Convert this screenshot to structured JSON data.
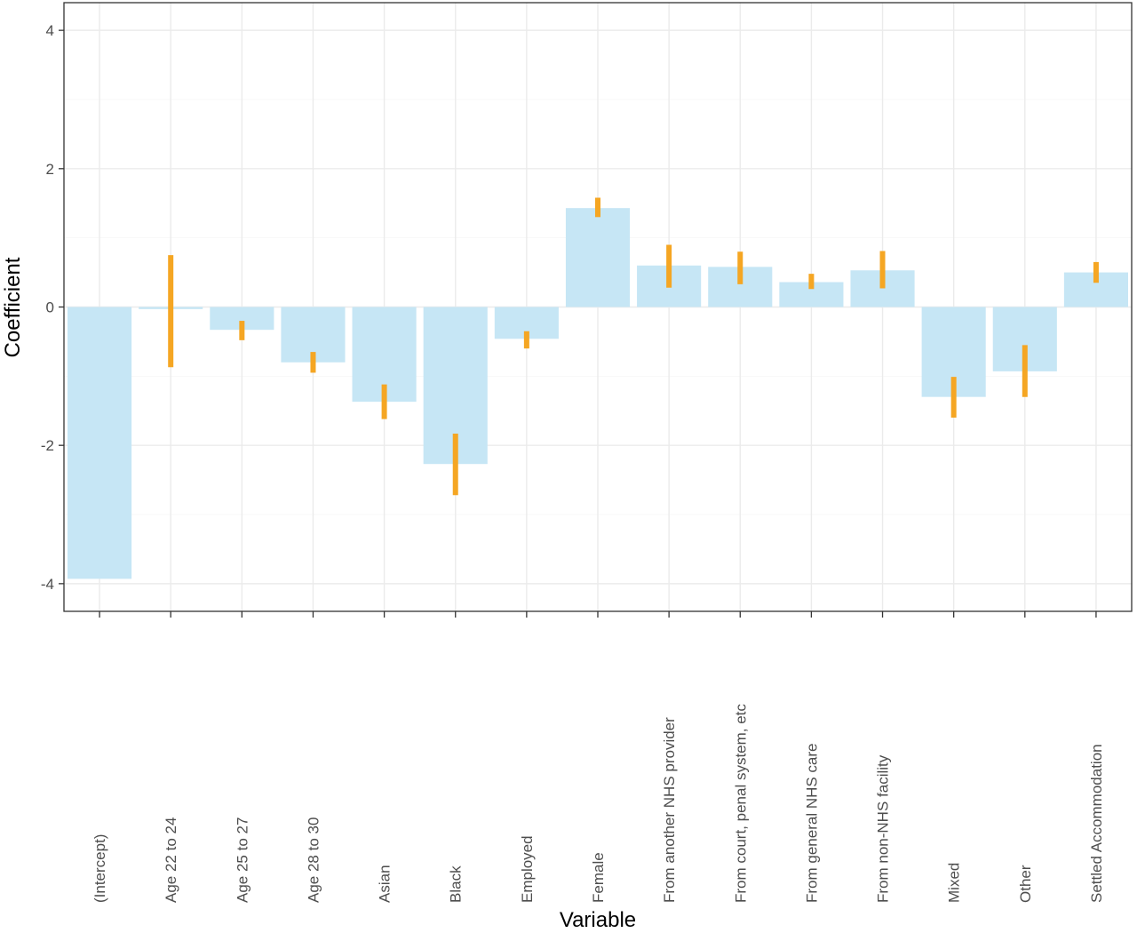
{
  "chart_data": {
    "type": "bar",
    "xlabel": "Variable",
    "ylabel": "Coefficient",
    "ylim": [
      -4.4,
      4.4
    ],
    "yticks": [
      -4,
      -2,
      0,
      2,
      4
    ],
    "ytick_labels": [
      "-4",
      "-2",
      "0",
      "2",
      "4"
    ],
    "grid": true,
    "categories": [
      "(Intercept)",
      "Age 22 to 24",
      "Age 25 to 27",
      "Age 28 to 30",
      "Asian",
      "Black",
      "Employed",
      "Female",
      "From another NHS provider",
      "From court, penal system, etc",
      "From general NHS care",
      "From non-NHS facility",
      "Mixed",
      "Other",
      "Settled Accommodation"
    ],
    "values": [
      -3.93,
      -0.03,
      -0.33,
      -0.8,
      -1.37,
      -2.27,
      -0.46,
      1.43,
      0.6,
      0.58,
      0.36,
      0.53,
      -1.3,
      -0.93,
      0.5
    ],
    "error_low": [
      null,
      -0.87,
      -0.48,
      -0.95,
      -1.62,
      -2.72,
      -0.6,
      1.3,
      0.28,
      0.33,
      0.26,
      0.27,
      -1.6,
      -1.3,
      0.35
    ],
    "error_high": [
      null,
      0.75,
      -0.2,
      -0.65,
      -1.12,
      -1.83,
      -0.35,
      1.58,
      0.9,
      0.8,
      0.48,
      0.81,
      -1.01,
      -0.55,
      0.65
    ],
    "bar_color": "#c6e6f5",
    "error_color": "#f5a623"
  }
}
